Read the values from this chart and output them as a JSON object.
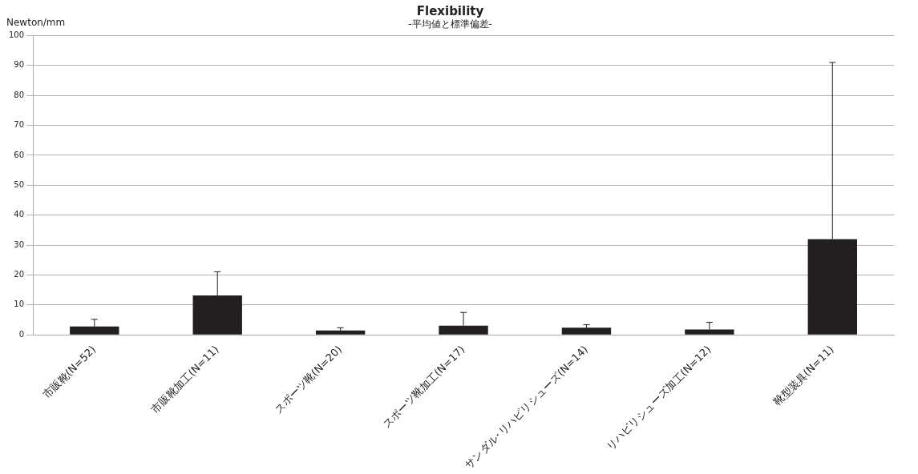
{
  "chart_data": {
    "type": "bar",
    "title": "Flexibility",
    "subtitle": "-平均値と標準偏差-",
    "ylabel": "Newton/mm",
    "categories": [
      "市販靴(N=52)",
      "市販靴加工(N=11)",
      "スポーツ靴(N=20)",
      "スポーツ靴加工(N=17)",
      "サンダル･リハビリシューズ(N=14)",
      "リハビリシューズ加工(N=12)",
      "靴型装具(N=11)"
    ],
    "values": [
      2.8,
      13.2,
      1.5,
      3.1,
      2.4,
      1.8,
      32
    ],
    "errors": [
      [
        2.8,
        5.2
      ],
      [
        13.2,
        21.1
      ],
      [
        1.5,
        2.4
      ],
      [
        3.1,
        7.5
      ],
      [
        2.4,
        3.4
      ],
      [
        1.8,
        4.2
      ],
      [
        32,
        91
      ]
    ],
    "color": "#231f20",
    "ylim": [
      0,
      100
    ],
    "yticks": [
      0,
      10,
      20,
      30,
      40,
      50,
      60,
      70,
      80,
      90,
      100
    ],
    "grid": "y",
    "legend": false
  }
}
